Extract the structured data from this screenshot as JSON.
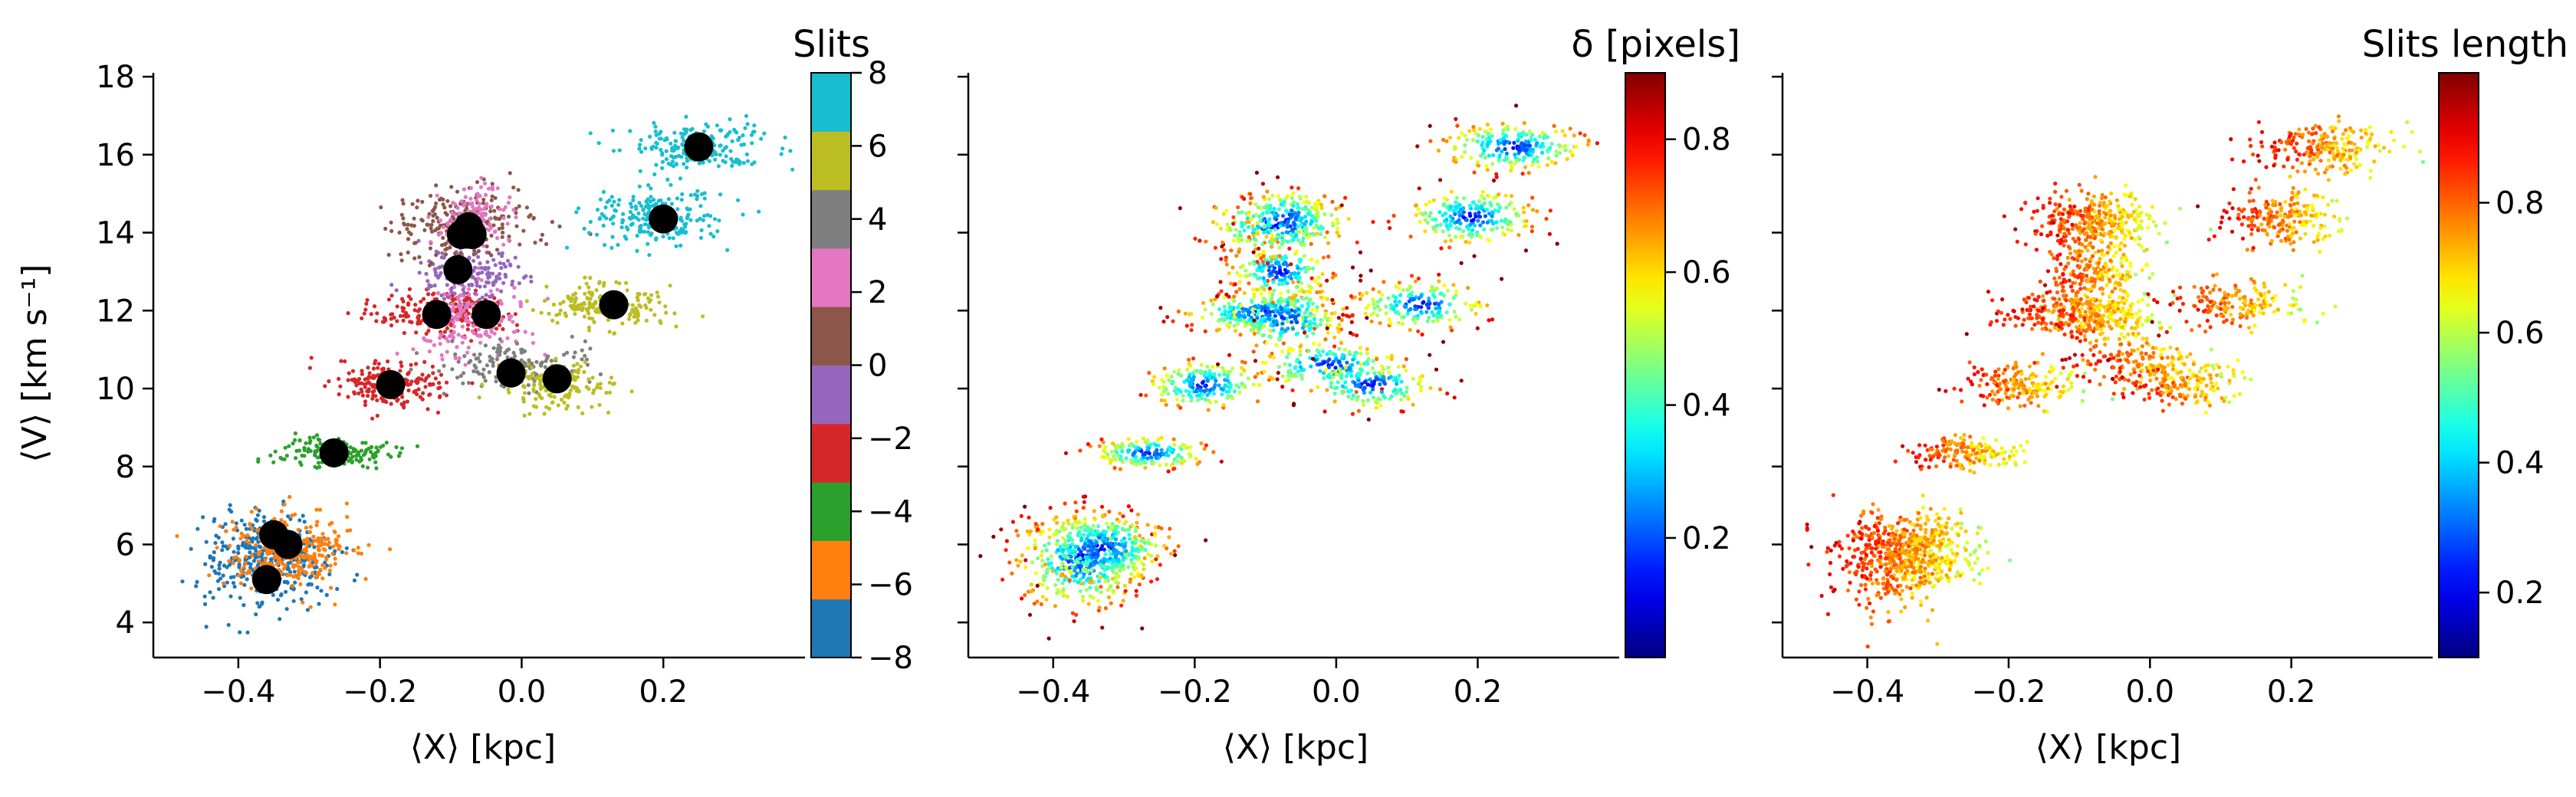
{
  "chart_data": [
    {
      "type": "scatter",
      "xlabel": "⟨X⟩ [kpc]",
      "ylabel": "⟨V⟩ [km s⁻¹]",
      "xlim": [
        -0.52,
        0.4
      ],
      "ylim": [
        3.1,
        18.1
      ],
      "x_ticks": [
        -0.4,
        -0.2,
        0.0,
        0.2
      ],
      "x_tick_labels": [
        "−0.4",
        "−0.2",
        "0.0",
        "0.2"
      ],
      "y_ticks": [
        4,
        6,
        8,
        10,
        12,
        14,
        16,
        18
      ],
      "y_tick_labels": [
        "4",
        "6",
        "8",
        "10",
        "12",
        "14",
        "16",
        "18"
      ],
      "colorbar": {
        "title": "Slits",
        "range": [
          -8,
          8
        ],
        "ticks": [
          -8,
          -6,
          -4,
          -2,
          0,
          2,
          4,
          6,
          8
        ],
        "tick_labels": [
          "−8",
          "−6",
          "−4",
          "−2",
          "0",
          "2",
          "4",
          "6",
          "8"
        ],
        "colormap": "tab10",
        "colors": [
          "#1f77b4",
          "#ff7f0e",
          "#2ca02c",
          "#d62728",
          "#9467bd",
          "#8c564b",
          "#e377c2",
          "#7f7f7f",
          "#bcbd22",
          "#17becf"
        ]
      },
      "cluster_centers": [
        {
          "x": -0.36,
          "y": 5.1
        },
        {
          "x": -0.35,
          "y": 6.25
        },
        {
          "x": -0.33,
          "y": 6.0
        },
        {
          "x": -0.265,
          "y": 8.35
        },
        {
          "x": -0.185,
          "y": 10.1
        },
        {
          "x": -0.12,
          "y": 11.9
        },
        {
          "x": -0.09,
          "y": 13.05
        },
        {
          "x": -0.085,
          "y": 13.95
        },
        {
          "x": -0.075,
          "y": 14.15
        },
        {
          "x": -0.07,
          "y": 13.95
        },
        {
          "x": -0.05,
          "y": 11.9
        },
        {
          "x": -0.015,
          "y": 10.4
        },
        {
          "x": 0.05,
          "y": 10.25
        },
        {
          "x": 0.13,
          "y": 12.15
        },
        {
          "x": 0.2,
          "y": 14.35
        },
        {
          "x": 0.25,
          "y": 16.2
        }
      ],
      "markers": {
        "color": "#000000",
        "description": "cluster centers"
      }
    },
    {
      "type": "scatter",
      "xlabel": "⟨X⟩ [kpc]",
      "xlim": [
        -0.52,
        0.4
      ],
      "ylim": [
        3.1,
        18.1
      ],
      "x_ticks": [
        -0.4,
        -0.2,
        0.0,
        0.2
      ],
      "x_tick_labels": [
        "−0.4",
        "−0.2",
        "0.0",
        "0.2"
      ],
      "colorbar": {
        "title": "δ [pixels]",
        "range": [
          0.02,
          0.9
        ],
        "ticks": [
          0.2,
          0.4,
          0.6,
          0.8
        ],
        "tick_labels": [
          "0.2",
          "0.4",
          "0.6",
          "0.8"
        ],
        "colormap": "jet"
      }
    },
    {
      "type": "scatter",
      "xlabel": "⟨X⟩ [kpc]",
      "xlim": [
        -0.52,
        0.4
      ],
      "ylim": [
        3.1,
        18.1
      ],
      "x_ticks": [
        -0.4,
        -0.2,
        0.0,
        0.2
      ],
      "x_tick_labels": [
        "−0.4",
        "−0.2",
        "0.0",
        "0.2"
      ],
      "colorbar": {
        "title": "Slits length",
        "range": [
          0.1,
          1.0
        ],
        "ticks": [
          0.2,
          0.4,
          0.6,
          0.8
        ],
        "tick_labels": [
          "0.2",
          "0.4",
          "0.6",
          "0.8"
        ],
        "colormap": "jet"
      }
    }
  ]
}
